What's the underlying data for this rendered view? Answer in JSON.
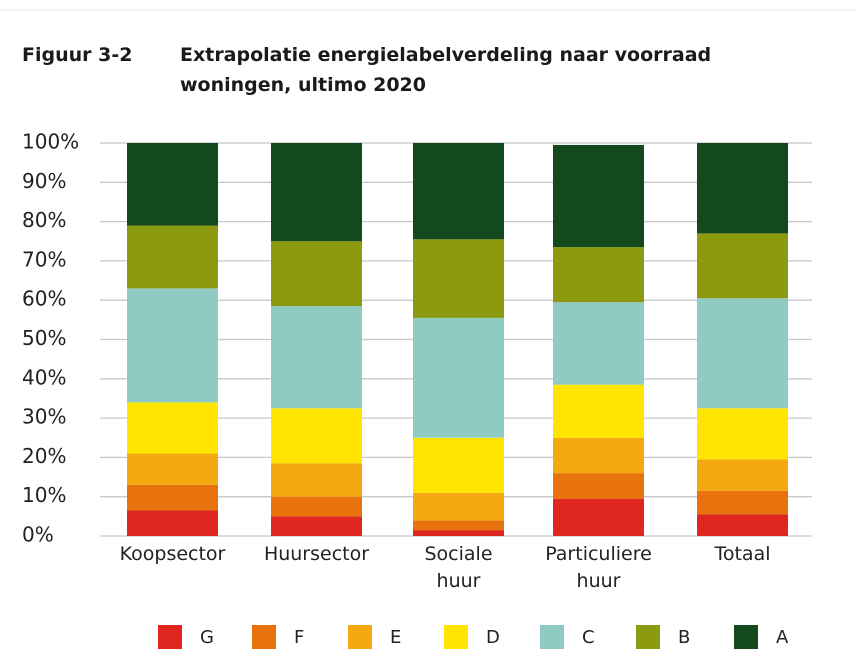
{
  "chart_data": {
    "type": "stacked_bar",
    "figure_label": "Figuur 3-2",
    "title": "Extrapolatie energielabelverdeling naar voorraad woningen, ultimo 2020",
    "categories": [
      "Koopsector",
      "Huursector",
      "Sociale\nhuur",
      "Particuliere\nhuur",
      "Totaal"
    ],
    "series": [
      {
        "name": "G",
        "color": "#e0271f",
        "values": [
          6.5,
          5,
          1.5,
          9.5,
          5.5
        ]
      },
      {
        "name": "F",
        "color": "#e8720c",
        "values": [
          6.5,
          5,
          2.5,
          6.5,
          6
        ]
      },
      {
        "name": "E",
        "color": "#f4a911",
        "values": [
          8,
          8.5,
          7,
          9,
          8
        ]
      },
      {
        "name": "D",
        "color": "#ffe500",
        "values": [
          13,
          14,
          14,
          13.5,
          13
        ]
      },
      {
        "name": "C",
        "color": "#8fcbc3",
        "values": [
          29,
          26,
          30.5,
          21,
          28
        ]
      },
      {
        "name": "B",
        "color": "#8c9a10",
        "values": [
          16,
          16.5,
          20,
          14,
          16.5
        ]
      },
      {
        "name": "A",
        "color": "#124a1e",
        "values": [
          21,
          25,
          24.5,
          26,
          23
        ]
      }
    ],
    "ylim": [
      0,
      100
    ],
    "yticks": [
      {
        "value": 0,
        "label": "0%"
      },
      {
        "value": 10,
        "label": "10%"
      },
      {
        "value": 20,
        "label": "20%"
      },
      {
        "value": 30,
        "label": "30%"
      },
      {
        "value": 40,
        "label": "40%"
      },
      {
        "value": 50,
        "label": "50%"
      },
      {
        "value": 60,
        "label": "60%"
      },
      {
        "value": 70,
        "label": "70%"
      },
      {
        "value": 80,
        "label": "80%"
      },
      {
        "value": 90,
        "label": "90%"
      },
      {
        "value": 100,
        "label": "100%"
      }
    ],
    "grid": true,
    "legend": "bottom"
  }
}
